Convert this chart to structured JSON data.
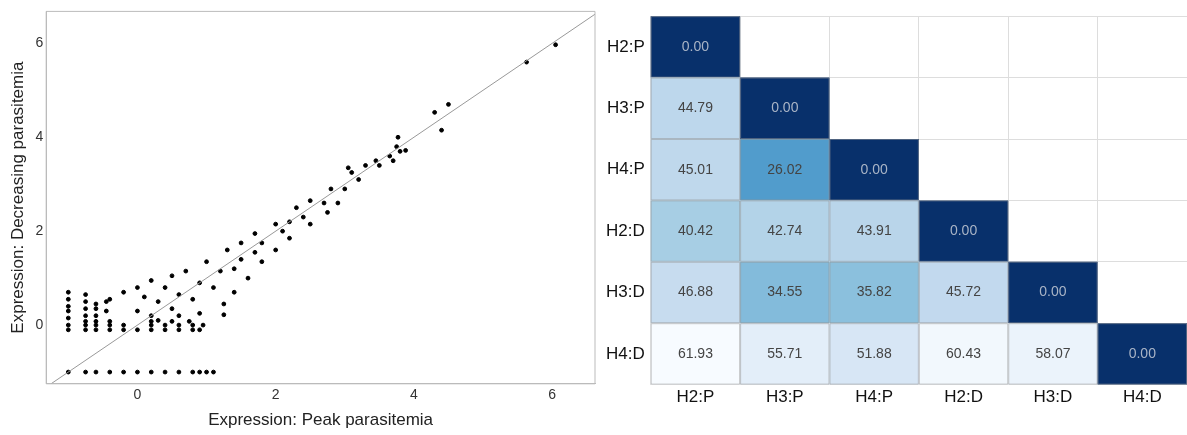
{
  "chart_data": [
    {
      "type": "scatter",
      "xlabel": "Expression: Peak parasitemia",
      "ylabel": "Expression: Decreasing parasitemia",
      "xlim": [
        -1.32,
        6.62
      ],
      "ylim": [
        -1.25,
        6.68
      ],
      "xticks": [
        0,
        2,
        4,
        6
      ],
      "yticks": [
        0,
        2,
        4,
        6
      ],
      "grid": false,
      "marker": "circle",
      "series": [
        {
          "color": "#000000",
          "x": [
            -1,
            -0.75,
            -0.6,
            -0.4,
            -0.2,
            0,
            0.2,
            0.4,
            0.6,
            0.8,
            0.9,
            1.0,
            1.1,
            -1,
            -0.75,
            -0.6,
            -0.4,
            -0.2,
            0,
            0.2,
            0.4,
            0.6,
            0.8,
            0.9,
            -1,
            -0.75,
            -0.6,
            -0.4,
            -0.2,
            0.2,
            0.4,
            0.6,
            0.8,
            0.95,
            -0.75,
            -0.6,
            -0.4,
            0.2,
            0.5,
            0.75,
            -1,
            -1,
            -1,
            -1,
            -1,
            -0.75,
            -0.75,
            -0.75,
            -0.75,
            -0.6,
            -0.6,
            -0.6,
            -0.45,
            -0.45,
            -0.4,
            -0.2,
            0,
            0.2,
            0.5,
            0.7,
            1.0,
            1.3,
            1.5,
            1.7,
            2.0,
            2.3,
            2.5,
            2.8,
            0.3,
            0.6,
            0.9,
            1.25,
            1.4,
            1.6,
            1.8,
            2.0,
            2.2,
            2.5,
            2.75,
            2.9,
            0,
            0.3,
            0.6,
            0.9,
            1.2,
            1.5,
            1.8,
            2.1,
            2.4,
            2.7,
            3.0,
            3.2,
            0.1,
            0.4,
            0.8,
            1.1,
            1.4,
            1.7,
            2.2,
            0.2,
            0.5,
            1.25,
            3.1,
            3.3,
            3.45,
            3.05,
            3.5,
            3.65,
            3.75,
            3.8,
            3.77,
            3.88,
            3.7,
            4.3,
            4.5,
            4.4,
            5.63,
            6.05
          ],
          "values": [
            -1,
            -1,
            -1,
            -1,
            -1,
            -1,
            -1,
            -1,
            -1,
            -1,
            -1,
            -1,
            -1,
            -0.1,
            -0.1,
            -0.1,
            -0.1,
            -0.1,
            -0.1,
            -0.1,
            -0.1,
            -0.1,
            -0.1,
            -0.1,
            0,
            0,
            0,
            0,
            0,
            0,
            0,
            0,
            0,
            0,
            0.08,
            0.08,
            0.08,
            0.08,
            0.08,
            0.08,
            0.15,
            0.3,
            0.4,
            0.55,
            0.7,
            0.2,
            0.35,
            0.5,
            0.65,
            0.2,
            0.35,
            0.45,
            0.3,
            0.5,
            0.55,
            0.7,
            0.8,
            0.95,
            1.05,
            1.15,
            1.35,
            1.6,
            1.75,
            1.95,
            2.15,
            2.5,
            2.65,
            2.9,
            0.1,
            0.2,
            0.25,
            0.45,
            0.7,
            1.0,
            1.35,
            1.6,
            1.85,
            2.15,
            2.4,
            2.6,
            0.3,
            0.5,
            0.65,
            0.9,
            1.15,
            1.4,
            1.75,
            2.0,
            2.3,
            2.6,
            2.9,
            3.1,
            0.6,
            0.8,
            0.55,
            0.8,
            1.2,
            1.55,
            2.2,
            0.2,
            0.35,
            0.22,
            3.25,
            3.4,
            3.5,
            3.35,
            3.4,
            3.6,
            3.8,
            3.7,
            4.0,
            3.72,
            3.5,
            4.53,
            4.7,
            4.15,
            5.6,
            5.97
          ]
        },
        {
          "type": "line",
          "marker": "none",
          "color": "#999999",
          "x": [
            -1.25,
            6.62
          ],
          "values": [
            -1.25,
            6.62
          ]
        }
      ]
    },
    {
      "type": "heatmap",
      "categories": [
        "H2:P",
        "H3:P",
        "H4:P",
        "H2:D",
        "H3:D",
        "H4:D"
      ],
      "y_categories": [
        "H2:P",
        "H3:P",
        "H4:P",
        "H2:D",
        "H3:D",
        "H4:D"
      ],
      "grid": true,
      "cells": [
        [
          0,
          null,
          null,
          null,
          null,
          null
        ],
        [
          44.79,
          0,
          null,
          null,
          null,
          null
        ],
        [
          45.01,
          26.02,
          0,
          null,
          null,
          null
        ],
        [
          40.42,
          42.74,
          43.91,
          0,
          null,
          null
        ],
        [
          46.88,
          34.55,
          35.82,
          45.72,
          0,
          null
        ],
        [
          61.93,
          55.71,
          51.88,
          60.43,
          58.07,
          0
        ]
      ],
      "cell_labels": [
        [
          "0.00",
          null,
          null,
          null,
          null,
          null
        ],
        [
          "44.79",
          "0.00",
          null,
          null,
          null,
          null
        ],
        [
          "45.01",
          "26.02",
          "0.00",
          null,
          null,
          null
        ],
        [
          "40.42",
          "42.74",
          "43.91",
          "0.00",
          null,
          null
        ],
        [
          "46.88",
          "34.55",
          "35.82",
          "45.72",
          "0.00",
          null
        ],
        [
          "61.93",
          "55.71",
          "51.88",
          "60.43",
          "58.07",
          "0.00"
        ]
      ]
    }
  ]
}
